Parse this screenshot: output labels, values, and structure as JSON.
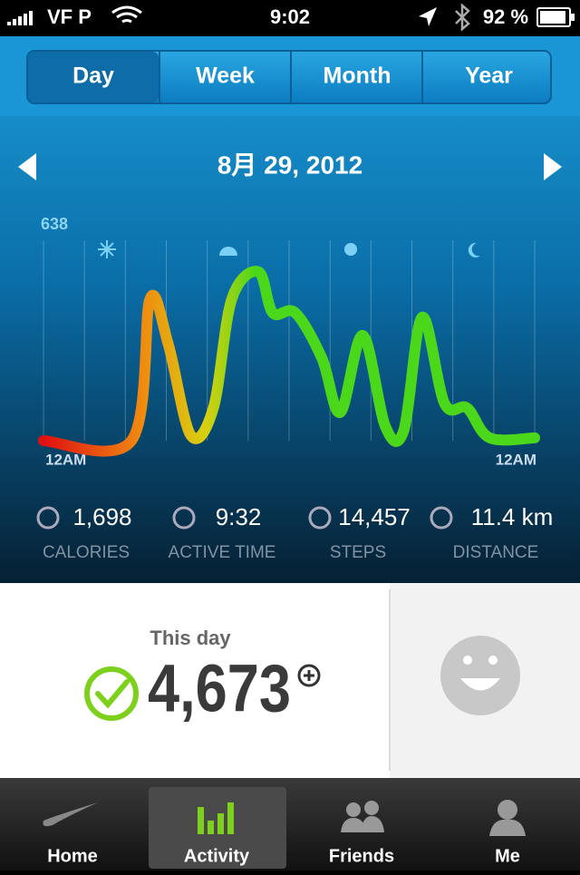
{
  "status": {
    "carrier": "VF P",
    "time": "9:02",
    "battery": "92 %"
  },
  "tabs": [
    "Day",
    "Week",
    "Month",
    "Year"
  ],
  "date": "8月 29, 2012",
  "chart_data": {
    "type": "line",
    "x": [
      0,
      4.3,
      5.2,
      6.1,
      7.2,
      8.3,
      9.2,
      10.5,
      11.2,
      12.3,
      13.6,
      14.5,
      15.6,
      16.7,
      17.6,
      18.5,
      19.6,
      20.7,
      21.8,
      24
    ],
    "values": [
      0,
      0,
      451,
      306,
      17,
      104,
      451,
      538,
      407,
      407,
      263,
      90,
      335,
      46,
      32,
      393,
      118,
      104,
      9,
      9
    ],
    "xlim": [
      0,
      24
    ],
    "xticks": [
      {
        "value": 0,
        "label": "12AM"
      },
      {
        "value": 24,
        "label": "12AM"
      }
    ],
    "ylim": [
      0,
      638
    ],
    "yticks": [
      638
    ],
    "colors": [
      "#e01010",
      "#f08a10",
      "#d8d010",
      "#4cd81a"
    ]
  },
  "stats": [
    {
      "value": "1,698",
      "label": "CALORIES"
    },
    {
      "value": "9:32",
      "label": "ACTIVE TIME"
    },
    {
      "value": "14,457",
      "label": "STEPS"
    },
    {
      "value": "11.4 km",
      "label": "DISTANCE"
    }
  ],
  "summary": {
    "label": "This day",
    "value": "4,673"
  },
  "nav": [
    "Home",
    "Activity",
    "Friends",
    "Me"
  ]
}
